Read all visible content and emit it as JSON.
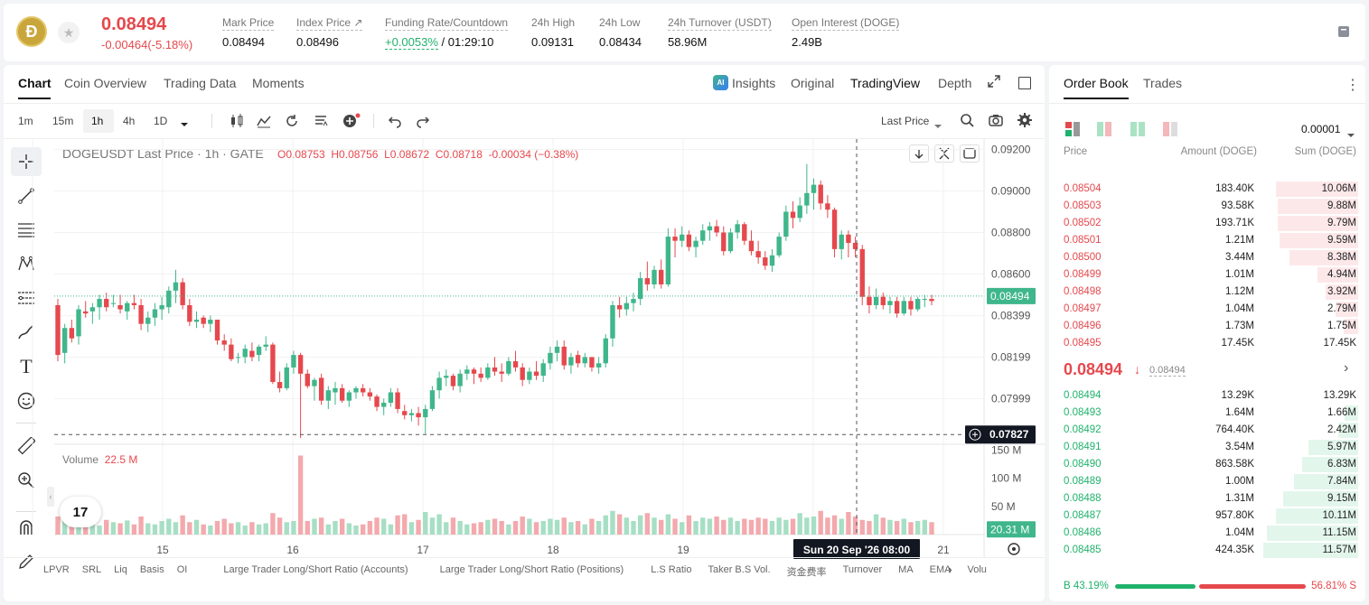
{
  "ticker": {
    "coin_symbol": "Ð",
    "price": "0.08494",
    "change": "-0.00464(-5.18%)",
    "stats": [
      {
        "label": "Mark Price",
        "value": "0.08494"
      },
      {
        "label": "Index Price ↗",
        "value": "0.08496"
      },
      {
        "label": "Funding Rate/Countdown",
        "value": "+0.0053%",
        "value2": "/ 01:29:10"
      },
      {
        "label": "24h High",
        "value": "0.09131"
      },
      {
        "label": "24h Low",
        "value": "0.08434"
      },
      {
        "label": "24h Turnover (USDT)",
        "value": "58.96M"
      },
      {
        "label": "Open Interest (DOGE)",
        "value": "2.49B"
      }
    ]
  },
  "chart_tabs": [
    "Chart",
    "Coin Overview",
    "Trading Data",
    "Moments"
  ],
  "view_tabs": {
    "insights": "Insights",
    "original": "Original",
    "tradingview": "TradingView",
    "depth": "Depth"
  },
  "ai_badge": "AI",
  "intervals": [
    "1m",
    "15m",
    "1h",
    "4h",
    "1D"
  ],
  "price_type": "Last Price",
  "legend": {
    "title": "DOGEUSDT Last Price · 1h · GATE",
    "o": "O0.08753",
    "h": "H0.08756",
    "l": "L0.08672",
    "c": "C0.08718",
    "chg": "-0.00034 (−0.38%)"
  },
  "volume_label": "Volume",
  "volume_value": "22.5 M",
  "y_ticks": [
    "0.09200",
    "0.09000",
    "0.08800",
    "0.08600",
    "0.08399",
    "0.08199",
    "0.07999"
  ],
  "current_price_tag": "0.08494",
  "crosshair_price_tag": "0.07827",
  "vol_ticks": [
    "150 M",
    "100 M",
    "50 M"
  ],
  "current_vol_tag": "20.31 M",
  "x_ticks": [
    "15",
    "16",
    "17",
    "18",
    "19",
    "21"
  ],
  "crosshair_time": "Sun 20 Sep '26   08:00",
  "tv_logo": "17",
  "indicators": [
    "LPVR",
    "SRL",
    "Liq",
    "Basis",
    "OI",
    "Large Trader Long/Short Ratio (Accounts)",
    "Large Trader Long/Short Ratio (Positions)",
    "L.S Ratio",
    "Taker B.S Vol.",
    "资金费率",
    "Turnover",
    "MA",
    "EMA",
    "Volu"
  ],
  "orderbook": {
    "tabs": [
      "Order Book",
      "Trades"
    ],
    "precision": "0.00001",
    "headers": {
      "price": "Price",
      "amount": "Amount (DOGE)",
      "sum": "Sum (DOGE)"
    },
    "asks": [
      {
        "price": "0.08504",
        "amount": "183.40K",
        "sum": "10.06M",
        "depth": 0.87
      },
      {
        "price": "0.08503",
        "amount": "93.58K",
        "sum": "9.88M",
        "depth": 0.85
      },
      {
        "price": "0.08502",
        "amount": "193.71K",
        "sum": "9.79M",
        "depth": 0.85
      },
      {
        "price": "0.08501",
        "amount": "1.21M",
        "sum": "9.59M",
        "depth": 0.83
      },
      {
        "price": "0.08500",
        "amount": "3.44M",
        "sum": "8.38M",
        "depth": 0.72
      },
      {
        "price": "0.08499",
        "amount": "1.01M",
        "sum": "4.94M",
        "depth": 0.43
      },
      {
        "price": "0.08498",
        "amount": "1.12M",
        "sum": "3.92M",
        "depth": 0.34
      },
      {
        "price": "0.08497",
        "amount": "1.04M",
        "sum": "2.79M",
        "depth": 0.24
      },
      {
        "price": "0.08496",
        "amount": "1.73M",
        "sum": "1.75M",
        "depth": 0.15
      },
      {
        "price": "0.08495",
        "amount": "17.45K",
        "sum": "17.45K",
        "depth": 0.0
      }
    ],
    "last_price": "0.08494",
    "last_arrow": "↓",
    "mark_price": "0.08494",
    "bids": [
      {
        "price": "0.08494",
        "amount": "13.29K",
        "sum": "13.29K",
        "depth": 0.0
      },
      {
        "price": "0.08493",
        "amount": "1.64M",
        "sum": "1.66M",
        "depth": 0.14
      },
      {
        "price": "0.08492",
        "amount": "764.40K",
        "sum": "2.42M",
        "depth": 0.21
      },
      {
        "price": "0.08491",
        "amount": "3.54M",
        "sum": "5.97M",
        "depth": 0.52
      },
      {
        "price": "0.08490",
        "amount": "863.58K",
        "sum": "6.83M",
        "depth": 0.59
      },
      {
        "price": "0.08489",
        "amount": "1.00M",
        "sum": "7.84M",
        "depth": 0.68
      },
      {
        "price": "0.08488",
        "amount": "1.31M",
        "sum": "9.15M",
        "depth": 0.79
      },
      {
        "price": "0.08487",
        "amount": "957.80K",
        "sum": "10.11M",
        "depth": 0.87
      },
      {
        "price": "0.08486",
        "amount": "1.04M",
        "sum": "11.15M",
        "depth": 0.96
      },
      {
        "price": "0.08485",
        "amount": "424.35K",
        "sum": "11.57M",
        "depth": 1.0
      }
    ],
    "buy_ratio": "43.19%",
    "sell_ratio": "56.81%",
    "buy_label": "B",
    "sell_label": "S",
    "buy_fraction": 0.4319
  },
  "chart_data": {
    "type": "candlestick",
    "symbol": "DOGEUSDT",
    "interval": "1h",
    "ylim": [
      0.0778,
      0.0925
    ],
    "candles": [
      [
        0.0845,
        0.0848,
        0.0818,
        0.0821
      ],
      [
        0.0822,
        0.0836,
        0.0817,
        0.0834
      ],
      [
        0.0834,
        0.0838,
        0.0827,
        0.0829
      ],
      [
        0.083,
        0.0845,
        0.0826,
        0.0843
      ],
      [
        0.0842,
        0.0847,
        0.0839,
        0.0841
      ],
      [
        0.0842,
        0.0846,
        0.0836,
        0.0844
      ],
      [
        0.0844,
        0.085,
        0.0838,
        0.0848
      ],
      [
        0.0848,
        0.0851,
        0.0842,
        0.0844
      ],
      [
        0.0846,
        0.085,
        0.0844,
        0.0846
      ],
      [
        0.0845,
        0.085,
        0.0841,
        0.0843
      ],
      [
        0.0842,
        0.0847,
        0.0838,
        0.0846
      ],
      [
        0.0846,
        0.085,
        0.0843,
        0.0845
      ],
      [
        0.0845,
        0.0848,
        0.0833,
        0.0836
      ],
      [
        0.0836,
        0.0842,
        0.0832,
        0.0839
      ],
      [
        0.0839,
        0.0846,
        0.0835,
        0.0843
      ],
      [
        0.0843,
        0.0849,
        0.0838,
        0.0845
      ],
      [
        0.0844,
        0.0854,
        0.0841,
        0.0852
      ],
      [
        0.0852,
        0.0862,
        0.0846,
        0.0856
      ],
      [
        0.0856,
        0.0858,
        0.0843,
        0.0845
      ],
      [
        0.0845,
        0.0848,
        0.0835,
        0.0837
      ],
      [
        0.0837,
        0.0842,
        0.0834,
        0.0838
      ],
      [
        0.0839,
        0.084,
        0.0834,
        0.0836
      ],
      [
        0.0836,
        0.084,
        0.0832,
        0.0838
      ],
      [
        0.0838,
        0.0838,
        0.0826,
        0.0828
      ],
      [
        0.0828,
        0.0831,
        0.0823,
        0.0826
      ],
      [
        0.0826,
        0.0829,
        0.0818,
        0.0819
      ],
      [
        0.082,
        0.0822,
        0.0817,
        0.082
      ],
      [
        0.082,
        0.0826,
        0.0817,
        0.0824
      ],
      [
        0.0823,
        0.0827,
        0.0818,
        0.082
      ],
      [
        0.0821,
        0.0826,
        0.0818,
        0.0825
      ],
      [
        0.0825,
        0.083,
        0.0823,
        0.0826
      ],
      [
        0.0826,
        0.0827,
        0.0807,
        0.0808
      ],
      [
        0.0808,
        0.0813,
        0.0803,
        0.0805
      ],
      [
        0.0805,
        0.0817,
        0.0804,
        0.0815
      ],
      [
        0.0815,
        0.0823,
        0.0812,
        0.0821
      ],
      [
        0.0821,
        0.0822,
        0.0781,
        0.0812
      ],
      [
        0.0812,
        0.0814,
        0.0805,
        0.0806
      ],
      [
        0.0806,
        0.081,
        0.0799,
        0.0809
      ],
      [
        0.081,
        0.0812,
        0.0797,
        0.0799
      ],
      [
        0.0799,
        0.0806,
        0.0795,
        0.0804
      ],
      [
        0.0803,
        0.0808,
        0.0797,
        0.0805
      ],
      [
        0.0805,
        0.0807,
        0.0798,
        0.0799
      ],
      [
        0.0799,
        0.0804,
        0.0796,
        0.0803
      ],
      [
        0.0803,
        0.0806,
        0.08,
        0.0805
      ],
      [
        0.0805,
        0.0807,
        0.0801,
        0.0803
      ],
      [
        0.0803,
        0.0805,
        0.0799,
        0.0801
      ],
      [
        0.0801,
        0.0802,
        0.0794,
        0.0796
      ],
      [
        0.0796,
        0.08,
        0.0792,
        0.0798
      ],
      [
        0.0798,
        0.0805,
        0.0796,
        0.0803
      ],
      [
        0.0803,
        0.0805,
        0.0793,
        0.0795
      ],
      [
        0.0794,
        0.0797,
        0.079,
        0.0792
      ],
      [
        0.0792,
        0.0795,
        0.0789,
        0.0793
      ],
      [
        0.0793,
        0.0796,
        0.0787,
        0.0791
      ],
      [
        0.0791,
        0.0797,
        0.0783,
        0.0795
      ],
      [
        0.0795,
        0.0806,
        0.0794,
        0.0804
      ],
      [
        0.0804,
        0.0813,
        0.08,
        0.081
      ],
      [
        0.081,
        0.0814,
        0.0806,
        0.0811
      ],
      [
        0.0811,
        0.0812,
        0.0804,
        0.0806
      ],
      [
        0.0806,
        0.0814,
        0.0803,
        0.0812
      ],
      [
        0.0812,
        0.0816,
        0.0809,
        0.0814
      ],
      [
        0.0814,
        0.0815,
        0.0807,
        0.0812
      ],
      [
        0.0812,
        0.0815,
        0.0808,
        0.081
      ],
      [
        0.081,
        0.0817,
        0.0809,
        0.0815
      ],
      [
        0.0815,
        0.082,
        0.0811,
        0.0813
      ],
      [
        0.0813,
        0.0817,
        0.0808,
        0.0812
      ],
      [
        0.0812,
        0.082,
        0.0811,
        0.0818
      ],
      [
        0.0818,
        0.0823,
        0.0813,
        0.0815
      ],
      [
        0.0815,
        0.0817,
        0.0806,
        0.0809
      ],
      [
        0.0809,
        0.0815,
        0.0807,
        0.0813
      ],
      [
        0.0813,
        0.0818,
        0.0809,
        0.0811
      ],
      [
        0.0811,
        0.0819,
        0.0808,
        0.0817
      ],
      [
        0.0817,
        0.0825,
        0.0814,
        0.0822
      ],
      [
        0.0822,
        0.0828,
        0.0818,
        0.0825
      ],
      [
        0.0825,
        0.0828,
        0.0814,
        0.0816
      ],
      [
        0.0816,
        0.0822,
        0.0812,
        0.082
      ],
      [
        0.0821,
        0.0823,
        0.0815,
        0.0817
      ],
      [
        0.0817,
        0.0822,
        0.0815,
        0.082
      ],
      [
        0.082,
        0.082,
        0.0813,
        0.0815
      ],
      [
        0.0815,
        0.082,
        0.0812,
        0.0817
      ],
      [
        0.0817,
        0.0831,
        0.0815,
        0.0829
      ],
      [
        0.0829,
        0.0847,
        0.0825,
        0.0845
      ],
      [
        0.0845,
        0.0849,
        0.0839,
        0.0843
      ],
      [
        0.0843,
        0.0849,
        0.084,
        0.0846
      ],
      [
        0.0846,
        0.0851,
        0.0842,
        0.0848
      ],
      [
        0.0848,
        0.0861,
        0.0845,
        0.0858
      ],
      [
        0.0858,
        0.0866,
        0.0852,
        0.0855
      ],
      [
        0.0855,
        0.0864,
        0.0853,
        0.0862
      ],
      [
        0.0862,
        0.0867,
        0.0853,
        0.0855
      ],
      [
        0.0855,
        0.0882,
        0.0854,
        0.0878
      ],
      [
        0.0878,
        0.0882,
        0.0868,
        0.0876
      ],
      [
        0.0876,
        0.0883,
        0.0873,
        0.0879
      ],
      [
        0.0879,
        0.0881,
        0.0871,
        0.0873
      ],
      [
        0.0873,
        0.0878,
        0.0868,
        0.0876
      ],
      [
        0.0876,
        0.0884,
        0.0874,
        0.0881
      ],
      [
        0.0881,
        0.0885,
        0.0876,
        0.0883
      ],
      [
        0.0883,
        0.0886,
        0.0878,
        0.088
      ],
      [
        0.088,
        0.0883,
        0.0869,
        0.0871
      ],
      [
        0.0871,
        0.0882,
        0.087,
        0.088
      ],
      [
        0.088,
        0.0886,
        0.0877,
        0.0884
      ],
      [
        0.0884,
        0.0885,
        0.0874,
        0.0876
      ],
      [
        0.0876,
        0.0881,
        0.0869,
        0.0871
      ],
      [
        0.0871,
        0.0876,
        0.0865,
        0.0868
      ],
      [
        0.0868,
        0.0871,
        0.0862,
        0.0864
      ],
      [
        0.0864,
        0.0872,
        0.0861,
        0.0869
      ],
      [
        0.0869,
        0.088,
        0.0868,
        0.0878
      ],
      [
        0.0878,
        0.0893,
        0.0876,
        0.089
      ],
      [
        0.089,
        0.0895,
        0.0882,
        0.0887
      ],
      [
        0.0887,
        0.0897,
        0.0885,
        0.0893
      ],
      [
        0.0893,
        0.0913,
        0.0889,
        0.0899
      ],
      [
        0.0899,
        0.0906,
        0.0891,
        0.0903
      ],
      [
        0.0903,
        0.0905,
        0.0891,
        0.0894
      ],
      [
        0.0894,
        0.0898,
        0.0887,
        0.0891
      ],
      [
        0.0891,
        0.0892,
        0.0868,
        0.0872
      ],
      [
        0.0872,
        0.0881,
        0.0867,
        0.0879
      ],
      [
        0.0879,
        0.0881,
        0.0868,
        0.0875
      ],
      [
        0.0875,
        0.0878,
        0.0868,
        0.0872
      ],
      [
        0.0872,
        0.0874,
        0.0845,
        0.0849
      ],
      [
        0.0849,
        0.0854,
        0.0841,
        0.0845
      ],
      [
        0.0845,
        0.0853,
        0.0843,
        0.0849
      ],
      [
        0.0849,
        0.0851,
        0.0843,
        0.0845
      ],
      [
        0.0845,
        0.0849,
        0.0841,
        0.0847
      ],
      [
        0.0847,
        0.0849,
        0.0839,
        0.0841
      ],
      [
        0.0841,
        0.0849,
        0.084,
        0.0847
      ],
      [
        0.0847,
        0.0849,
        0.084,
        0.0843
      ],
      [
        0.0843,
        0.0849,
        0.0842,
        0.0848
      ],
      [
        0.0848,
        0.085,
        0.0844,
        0.0848
      ],
      [
        0.0848,
        0.085,
        0.0845,
        0.0847
      ]
    ],
    "volume": [
      32,
      24,
      14,
      28,
      18,
      22,
      16,
      26,
      22,
      20,
      25,
      18,
      32,
      20,
      18,
      24,
      28,
      22,
      34,
      22,
      26,
      18,
      16,
      24,
      28,
      20,
      22,
      16,
      22,
      18,
      20,
      38,
      30,
      22,
      24,
      140,
      24,
      28,
      30,
      18,
      24,
      28,
      20,
      16,
      18,
      24,
      30,
      28,
      18,
      34,
      36,
      22,
      26,
      40,
      30,
      36,
      22,
      30,
      24,
      18,
      20,
      22,
      26,
      28,
      24,
      18,
      24,
      32,
      28,
      22,
      24,
      28,
      26,
      30,
      22,
      24,
      18,
      28,
      24,
      34,
      42,
      36,
      30,
      24,
      34,
      38,
      30,
      26,
      36,
      28,
      22,
      34,
      24,
      30,
      28,
      32,
      26,
      30,
      24,
      28,
      26,
      30,
      28,
      24,
      30,
      26,
      28,
      38,
      30,
      32,
      42,
      30,
      34,
      28,
      40,
      32,
      26,
      24,
      36,
      30,
      26,
      24,
      28,
      22,
      24,
      26,
      22,
      24
    ],
    "current_price": 0.08494,
    "crosshair_price": 0.07827,
    "vol_max": 160
  }
}
